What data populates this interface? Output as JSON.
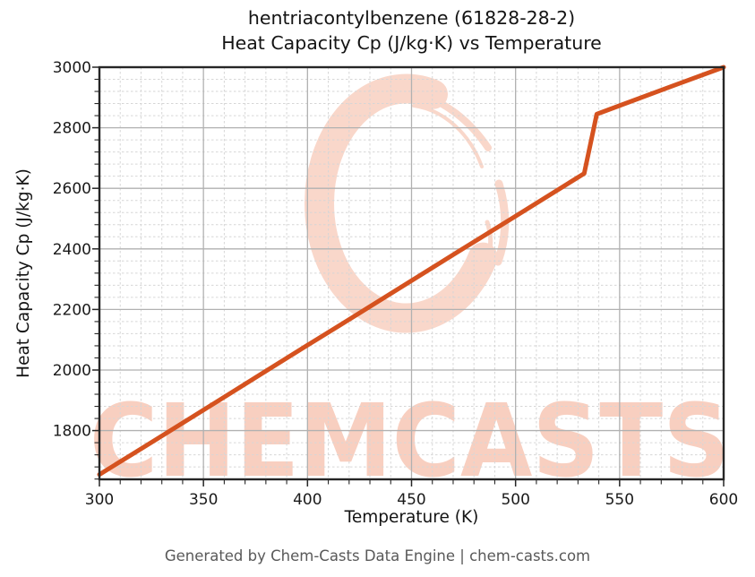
{
  "title": {
    "line1": "hentriacontylbenzene (61828-28-2)",
    "line2": "Heat Capacity Cp (J/kg·K) vs Temperature"
  },
  "footer": "Generated by Chem-Casts Data Engine | chem-casts.com",
  "watermark": {
    "text": "CHEMCASTS",
    "text_color": "#f8cfc0",
    "ring_color": "#f9d7ca"
  },
  "chart_data": {
    "type": "line",
    "title": "hentriacontylbenzene (61828-28-2) — Heat Capacity Cp (J/kg·K) vs Temperature",
    "xlabel": "Temperature (K)",
    "ylabel": "Heat Capacity Cp (J/kg·K)",
    "xlim": [
      300,
      600
    ],
    "ylim": [
      1639,
      3000
    ],
    "x_ticks": [
      300,
      350,
      400,
      450,
      500,
      550,
      600
    ],
    "x_tick_labels": [
      "300",
      "350",
      "400",
      "450",
      "500",
      "550",
      "600"
    ],
    "y_ticks": [
      1800,
      2000,
      2200,
      2400,
      2600,
      2800,
      3000
    ],
    "y_tick_labels": [
      "1800",
      "2000",
      "2200",
      "2400",
      "2600",
      "2800",
      "3000"
    ],
    "x_minor_step": 10,
    "y_minor_step": 40,
    "grid": true,
    "legend": "none",
    "line_color": "#d5521f",
    "line_width": 5,
    "grid_major_color": "#b1b1b1",
    "grid_minor_color": "#d6d6d6",
    "spine_color": "#262626",
    "tick_label_color": "#1a1a1a",
    "series": [
      {
        "name": "Heat Capacity Cp",
        "points": [
          [
            300,
            1655
          ],
          [
            325,
            1761
          ],
          [
            350,
            1868
          ],
          [
            375,
            1975
          ],
          [
            400,
            2082
          ],
          [
            425,
            2188
          ],
          [
            450,
            2295
          ],
          [
            475,
            2402
          ],
          [
            500,
            2508
          ],
          [
            525,
            2615
          ],
          [
            533,
            2649
          ],
          [
            539,
            2845
          ],
          [
            550,
            2873
          ],
          [
            575,
            2937
          ],
          [
            600,
            3000
          ]
        ]
      }
    ],
    "annotations": {
      "step_transition": "sharp Cp jump between ~533 K and ~539 K (from ~2650 to ~2845 J/kg·K)"
    }
  }
}
